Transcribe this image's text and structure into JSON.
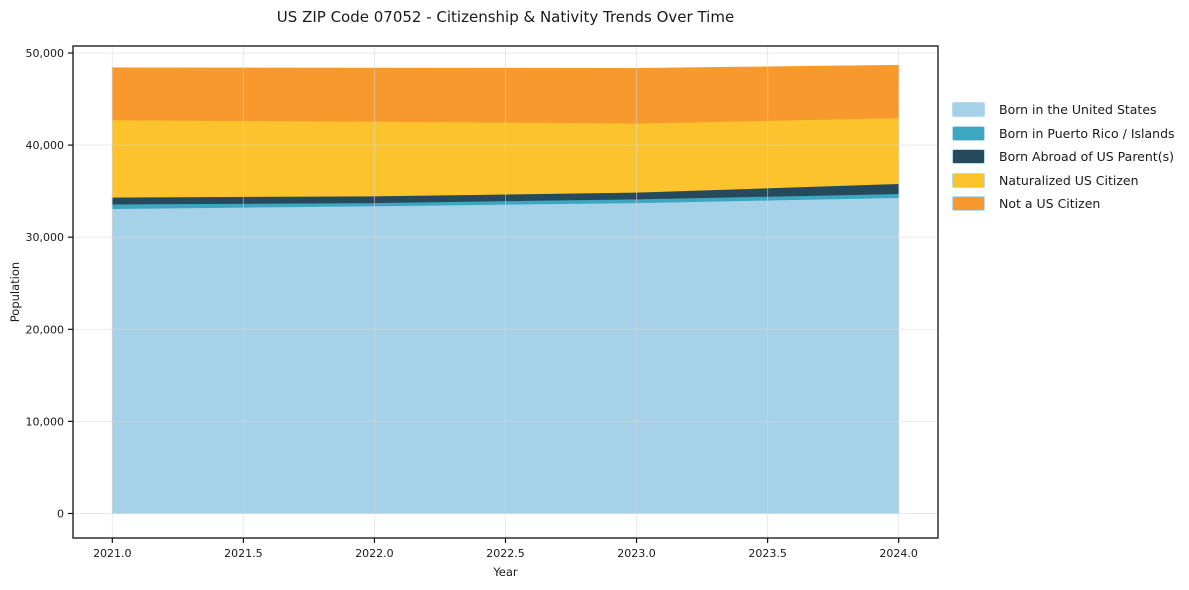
{
  "title": "US ZIP Code 07052 - Citizenship & Nativity Trends Over Time",
  "chart_data": {
    "type": "area",
    "stacked": true,
    "title": "US ZIP Code 07052 - Citizenship & Nativity Trends Over Time",
    "xlabel": "Year",
    "ylabel": "Population",
    "x": [
      2021,
      2022,
      2023,
      2024
    ],
    "series": [
      {
        "name": "Born in the United States",
        "values": [
          33100,
          33400,
          33750,
          34300
        ],
        "color": "#A5D2E8"
      },
      {
        "name": "Born in Puerto Rico / Islands",
        "values": [
          500,
          350,
          400,
          430
        ],
        "color": "#3DA6C0"
      },
      {
        "name": "Born Abroad of US Parent(s)",
        "values": [
          740,
          730,
          730,
          1090
        ],
        "color": "#26495C"
      },
      {
        "name": "Naturalized US Citizen",
        "values": [
          8400,
          8100,
          7500,
          7150
        ],
        "color": "#FCC32D"
      },
      {
        "name": "Not a US Citizen",
        "values": [
          5650,
          5770,
          5950,
          5700
        ],
        "color": "#F8992D"
      }
    ],
    "xticks": [
      2021.0,
      2021.5,
      2022.0,
      2022.5,
      2023.0,
      2023.5,
      2024.0
    ],
    "yticks": [
      0,
      10000,
      20000,
      30000,
      40000,
      50000
    ],
    "xlim": [
      2020.85,
      2024.15
    ],
    "ylim": [
      -2660,
      50760
    ],
    "grid": true,
    "legend_position": "right-outside"
  },
  "colors": {
    "background": "#ffffff",
    "spine": "#111111",
    "grid": "#d9d9d9",
    "tick": "#111111",
    "text": "#1a1a1a"
  }
}
